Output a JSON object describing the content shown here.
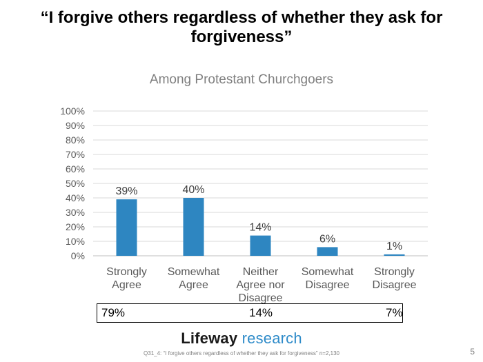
{
  "page": {
    "title": "“I forgive others regardless of whether they ask for forgiveness”",
    "footnote": "Q31_4: “I forgive others regardless of whether they ask for forgiveness”  n=2,130",
    "page_number": "5",
    "logo": {
      "word": "Lifeway",
      "suffix": " research"
    }
  },
  "summary": {
    "agree": "79%",
    "neither": "14%",
    "disagree": "7%"
  },
  "colors": {
    "bar": "#2e86c1",
    "grid": "#d9d9d9",
    "axis_text": "#595959",
    "category_text": "#595959"
  },
  "chart_data": {
    "type": "bar",
    "title": "Among Protestant Churchgoers",
    "categories": [
      [
        "Strongly",
        "Agree"
      ],
      [
        "Somewhat",
        "Agree"
      ],
      [
        "Neither",
        "Agree nor",
        "Disagree"
      ],
      [
        "Somewhat",
        "Disagree"
      ],
      [
        "Strongly",
        "Disagree"
      ]
    ],
    "values": [
      39,
      40,
      14,
      6,
      1
    ],
    "data_labels": [
      "39%",
      "40%",
      "14%",
      "6%",
      "1%"
    ],
    "ylim": [
      0,
      100
    ],
    "yticks": [
      0,
      10,
      20,
      30,
      40,
      50,
      60,
      70,
      80,
      90,
      100
    ],
    "ytick_labels": [
      "0%",
      "10%",
      "20%",
      "30%",
      "40%",
      "50%",
      "60%",
      "70%",
      "80%",
      "90%",
      "100%"
    ],
    "xlabel": "",
    "ylabel": "",
    "grid": true
  }
}
